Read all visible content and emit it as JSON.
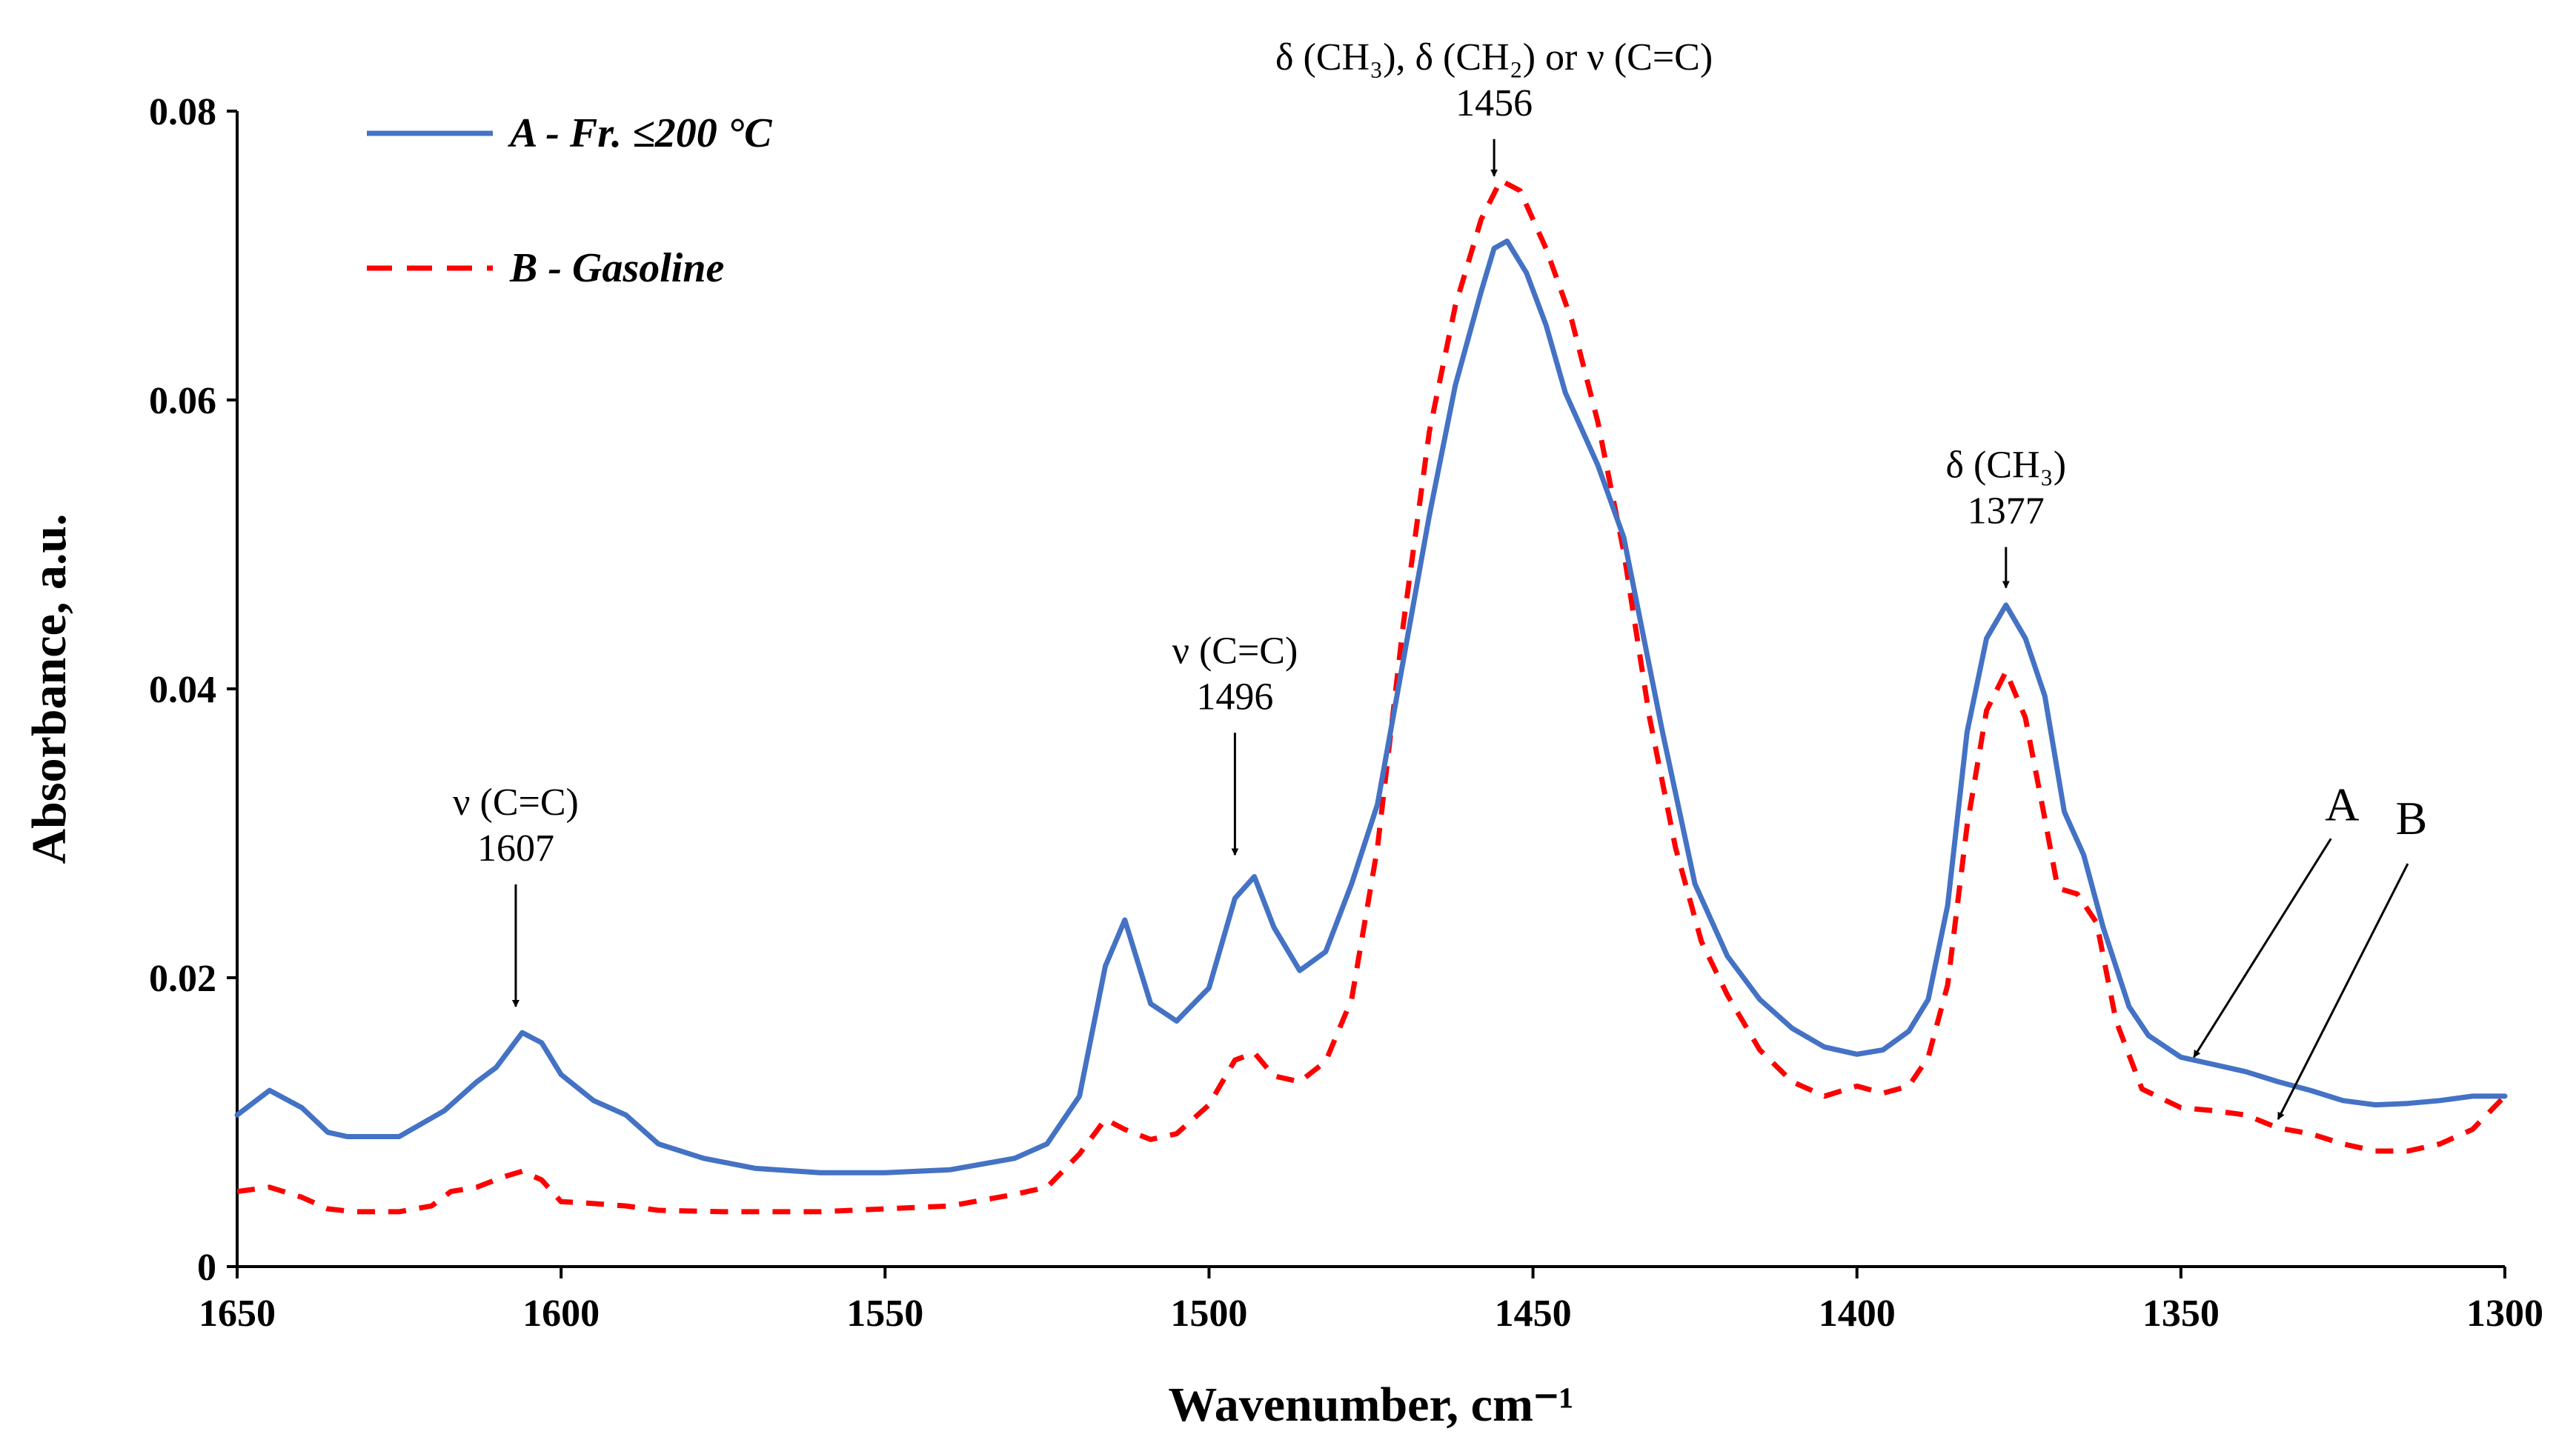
{
  "chart_data": {
    "type": "line",
    "xlabel": "Wavenumber, cm⁻¹",
    "ylabel": "Absorbance, a.u.",
    "xlim": [
      1650,
      1300
    ],
    "ylim": [
      0,
      0.08
    ],
    "x_reversed": true,
    "xticks": [
      1650,
      1600,
      1550,
      1500,
      1450,
      1400,
      1350,
      1300
    ],
    "xtick_labels": [
      "1650",
      "1600",
      "1550",
      "1500",
      "1450",
      "1400",
      "1350",
      "1300"
    ],
    "yticks": [
      0,
      0.02,
      0.04,
      0.06,
      0.08
    ],
    "ytick_labels": [
      "0",
      "0.02",
      "0.04",
      "0.06",
      "0.08"
    ],
    "legend_position": "top-left",
    "series": [
      {
        "name": "A - Fr. ≤200 °C",
        "style": "solid",
        "color": "#4472C4",
        "x": [
          1650,
          1645,
          1640,
          1636,
          1633,
          1625,
          1618,
          1613,
          1610,
          1606,
          1603,
          1600,
          1595,
          1590,
          1585,
          1578,
          1570,
          1560,
          1550,
          1540,
          1530,
          1525,
          1520,
          1516,
          1513,
          1509,
          1505,
          1500,
          1496,
          1493,
          1490,
          1486,
          1482,
          1478,
          1474,
          1470,
          1466,
          1462,
          1458,
          1456,
          1454,
          1451,
          1448,
          1445,
          1440,
          1436,
          1430,
          1425,
          1420,
          1415,
          1410,
          1405,
          1400,
          1396,
          1392,
          1389,
          1386,
          1383,
          1380,
          1377,
          1374,
          1371,
          1368,
          1365,
          1362,
          1358,
          1355,
          1350,
          1345,
          1340,
          1335,
          1330,
          1325,
          1320,
          1315,
          1310,
          1305,
          1300
        ],
        "y": [
          0.0105,
          0.0122,
          0.011,
          0.0093,
          0.009,
          0.009,
          0.0108,
          0.0128,
          0.0138,
          0.0162,
          0.0155,
          0.0133,
          0.0115,
          0.0105,
          0.0085,
          0.0075,
          0.0068,
          0.0065,
          0.0065,
          0.0067,
          0.0075,
          0.0085,
          0.0118,
          0.0208,
          0.024,
          0.0182,
          0.017,
          0.0193,
          0.0255,
          0.027,
          0.0235,
          0.0205,
          0.0218,
          0.0265,
          0.032,
          0.042,
          0.052,
          0.061,
          0.0675,
          0.0705,
          0.071,
          0.0688,
          0.0652,
          0.0605,
          0.0555,
          0.0505,
          0.037,
          0.0265,
          0.0215,
          0.0185,
          0.0165,
          0.0152,
          0.0147,
          0.015,
          0.0163,
          0.0185,
          0.025,
          0.037,
          0.0435,
          0.0458,
          0.0435,
          0.0395,
          0.0315,
          0.0285,
          0.0235,
          0.018,
          0.016,
          0.0145,
          0.014,
          0.0135,
          0.0128,
          0.0122,
          0.0115,
          0.0112,
          0.0113,
          0.0115,
          0.0118,
          0.0118
        ]
      },
      {
        "name": "B - Gasoline",
        "style": "dashed",
        "color": "#FF0000",
        "x": [
          1650,
          1645,
          1640,
          1636,
          1632,
          1625,
          1620,
          1617,
          1613,
          1609,
          1606,
          1603,
          1600,
          1596,
          1590,
          1585,
          1575,
          1560,
          1550,
          1540,
          1530,
          1525,
          1520,
          1516,
          1513,
          1509,
          1505,
          1500,
          1496,
          1493,
          1490,
          1486,
          1482,
          1478,
          1474,
          1470,
          1466,
          1462,
          1458,
          1455,
          1452,
          1448,
          1444,
          1440,
          1436,
          1432,
          1428,
          1424,
          1420,
          1415,
          1410,
          1405,
          1400,
          1396,
          1392,
          1389,
          1386,
          1383,
          1380,
          1377,
          1374,
          1371,
          1369,
          1366,
          1363,
          1360,
          1356,
          1350,
          1345,
          1340,
          1335,
          1330,
          1325,
          1320,
          1315,
          1310,
          1305,
          1300
        ],
        "y": [
          0.0052,
          0.0055,
          0.0048,
          0.004,
          0.0038,
          0.0038,
          0.0042,
          0.0052,
          0.0055,
          0.0062,
          0.0066,
          0.006,
          0.0045,
          0.0044,
          0.0042,
          0.0039,
          0.0038,
          0.0038,
          0.004,
          0.0042,
          0.005,
          0.0055,
          0.0078,
          0.0102,
          0.0095,
          0.0088,
          0.0092,
          0.0112,
          0.0143,
          0.0148,
          0.0132,
          0.0128,
          0.0142,
          0.0185,
          0.029,
          0.0445,
          0.0578,
          0.0665,
          0.0725,
          0.0752,
          0.0745,
          0.0705,
          0.0655,
          0.0585,
          0.0495,
          0.038,
          0.029,
          0.0225,
          0.0188,
          0.015,
          0.0128,
          0.0118,
          0.0125,
          0.012,
          0.0125,
          0.0145,
          0.0195,
          0.0305,
          0.0385,
          0.0412,
          0.038,
          0.031,
          0.0262,
          0.0258,
          0.0238,
          0.017,
          0.0123,
          0.011,
          0.0108,
          0.0105,
          0.0096,
          0.0092,
          0.0085,
          0.008,
          0.008,
          0.0085,
          0.0095,
          0.0118
        ]
      }
    ],
    "annotations": [
      {
        "label": "ν (C=C)",
        "value": "1607",
        "arrow_x": 1607,
        "arrow_y": 0.018
      },
      {
        "label": "ν (C=C)",
        "value": "1496",
        "arrow_x": 1496,
        "arrow_y": 0.0285
      },
      {
        "label": "δ (CH₃),  δ (CH₂)  or ν (C=C)",
        "value": "1456",
        "arrow_x": 1456,
        "arrow_y": 0.0755
      },
      {
        "label": "δ (CH₃)",
        "value": "1377",
        "arrow_x": 1377,
        "arrow_y": 0.047
      }
    ],
    "curve_labels": [
      {
        "label": "A",
        "arrow_x": 1348,
        "arrow_y": 0.0145
      },
      {
        "label": "B",
        "arrow_x": 1335,
        "arrow_y": 0.0102
      }
    ]
  }
}
